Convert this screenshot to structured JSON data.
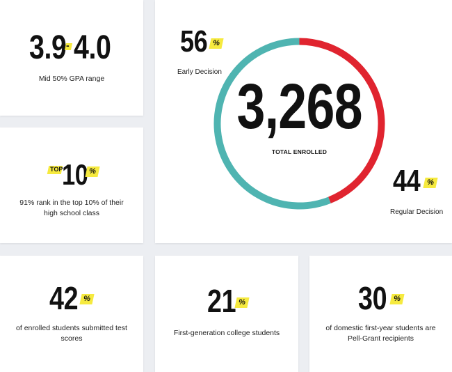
{
  "chart_data": {
    "type": "pie",
    "title": "",
    "center_value": "3,268",
    "center_label": "TOTAL ENROLLED",
    "slices": [
      {
        "name": "Early Decision",
        "value": 56,
        "value_label": "56",
        "suffix": "%",
        "color": "#4fb4b1"
      },
      {
        "name": "Regular Decision",
        "value": 44,
        "value_label": "44",
        "suffix": "%",
        "color": "#e0242f"
      }
    ]
  },
  "stats": {
    "gpa": {
      "low": "3.9",
      "high": "4.0",
      "separator": "-",
      "label": "Mid 50% GPA range"
    },
    "top_rank": {
      "prefix": "TOP",
      "value": "10",
      "suffix": "%",
      "label": "91% rank in the top 10% of their high school class"
    },
    "test_scores": {
      "value": "42",
      "suffix": "%",
      "label": "of enrolled students submitted test scores"
    },
    "first_gen": {
      "value": "21",
      "suffix": "%",
      "label": "First-generation college students"
    },
    "pell": {
      "value": "30",
      "suffix": "%",
      "label": "of domestic first-year students are Pell-Grant recipients"
    }
  },
  "colors": {
    "accent_yellow": "#f6ea3f",
    "early_decision": "#4fb4b1",
    "regular_decision": "#e0242f",
    "text": "#111111",
    "background": "#eceef2"
  }
}
